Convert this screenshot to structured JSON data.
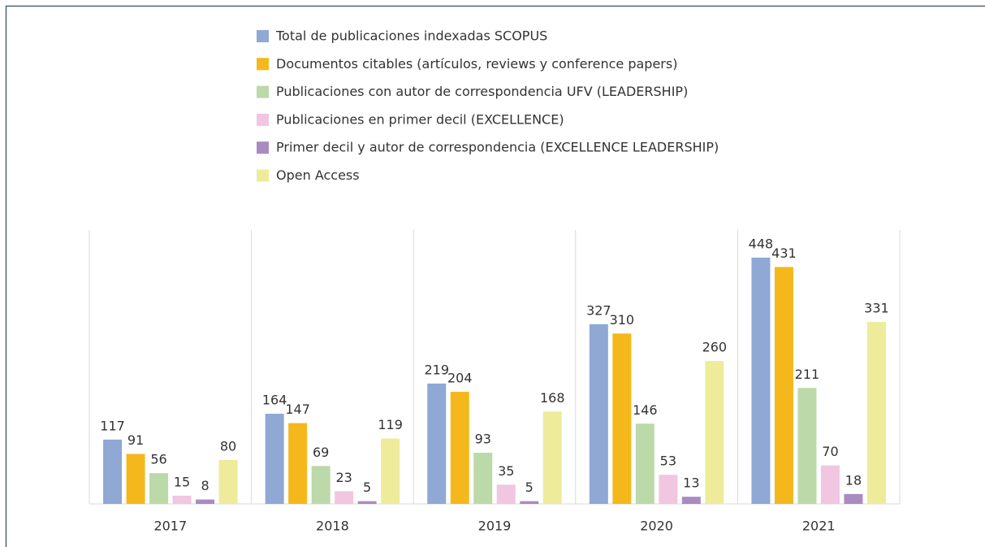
{
  "chart_data": {
    "type": "bar",
    "categories": [
      "2017",
      "2018",
      "2019",
      "2020",
      "2021"
    ],
    "series": [
      {
        "name": "Total de publicaciones indexadas SCOPUS",
        "color": "#8fa8d4",
        "values": [
          117,
          164,
          219,
          327,
          448
        ]
      },
      {
        "name": "Documentos citables (artículos, reviews y conference papers)",
        "color": "#f5b81c",
        "values": [
          91,
          147,
          204,
          310,
          431
        ]
      },
      {
        "name": "Publicaciones con autor de correspondencia UFV (LEADERSHIP)",
        "color": "#bcd9a9",
        "values": [
          56,
          69,
          93,
          146,
          211
        ]
      },
      {
        "name": "Publicaciones en primer decil (EXCELLENCE)",
        "color": "#f0c6e1",
        "values": [
          15,
          23,
          35,
          53,
          70
        ]
      },
      {
        "name": "Primer decil y autor de correspondencia (EXCELLENCE LEADERSHIP)",
        "color": "#a98bc2",
        "values": [
          8,
          5,
          5,
          13,
          18
        ]
      },
      {
        "name": "Open Access",
        "color": "#eeeb9b",
        "values": [
          80,
          119,
          168,
          260,
          331
        ]
      }
    ]
  }
}
